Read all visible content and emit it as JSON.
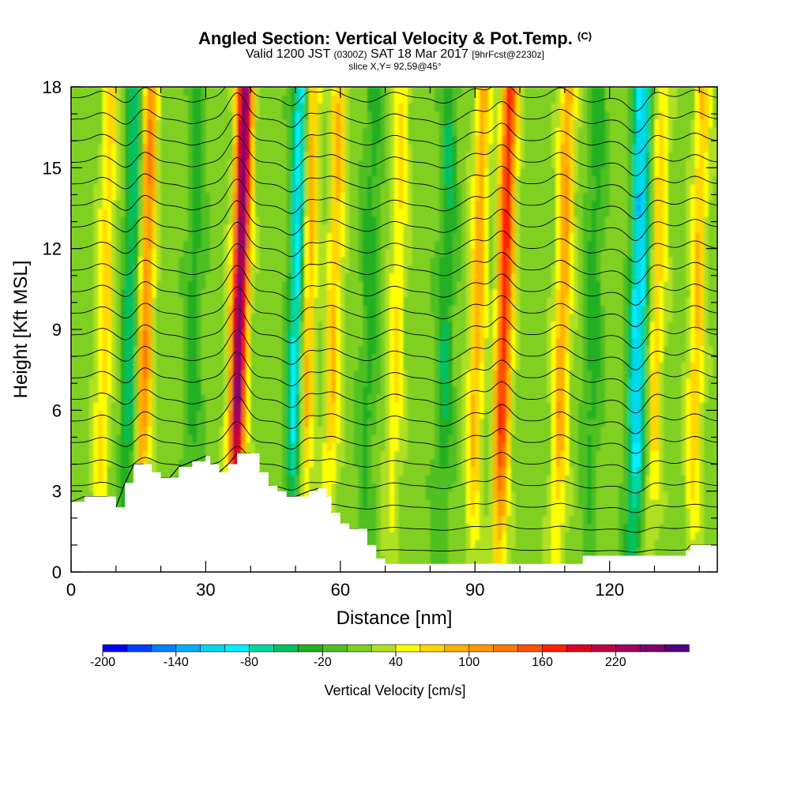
{
  "title_main": "Angled Section: Vertical Velocity & Pot.Temp.",
  "title_unit": "(C)",
  "subtitle_a": "Valid 1200 JST",
  "subtitle_b": "(0300Z)",
  "subtitle_c": "SAT 18 Mar 2017",
  "subtitle_d": "[9hrFcst@2230z]",
  "slice_note": "slice X,Y= 92,59@45°",
  "chart_data": {
    "type": "heatmap",
    "xlabel": "Distance [nm]",
    "ylabel": "Height [Kft MSL]",
    "xlim": [
      0,
      144
    ],
    "ylim": [
      0,
      18
    ],
    "x_ticks": [
      0,
      30,
      60,
      90,
      120
    ],
    "y_ticks": [
      0,
      3,
      6,
      9,
      12,
      15,
      18
    ],
    "colorbar": {
      "title": "Vertical Velocity [cm/s]",
      "ticks": [
        -200,
        -140,
        -80,
        -20,
        40,
        100,
        160,
        220
      ],
      "levels": [
        -200,
        -180,
        -160,
        -140,
        -120,
        -100,
        -80,
        -60,
        -40,
        -20,
        0,
        20,
        40,
        60,
        80,
        100,
        120,
        140,
        160,
        180,
        200,
        220,
        240,
        260
      ],
      "colors": [
        "#0000ff",
        "#0040ff",
        "#0080ff",
        "#00b0ff",
        "#00d8f0",
        "#00f0ff",
        "#00d8a0",
        "#00c060",
        "#20b020",
        "#50c020",
        "#80d020",
        "#b0e020",
        "#ffff00",
        "#ffd800",
        "#ffb000",
        "#ff9800",
        "#ff7800",
        "#ff5000",
        "#ff2000",
        "#e00020",
        "#c00040",
        "#a00060",
        "#800070",
        "#500080"
      ]
    },
    "updraft_columns": [
      {
        "x": 7,
        "w": 60
      },
      {
        "x": 16,
        "w": 110
      },
      {
        "x": 37,
        "w": 240
      },
      {
        "x": 52,
        "w": 100
      },
      {
        "x": 58,
        "w": 70
      },
      {
        "x": 72,
        "w": 50
      },
      {
        "x": 90,
        "w": 80
      },
      {
        "x": 96,
        "w": 160
      },
      {
        "x": 109,
        "w": 90
      },
      {
        "x": 130,
        "w": 60
      },
      {
        "x": 139,
        "w": 70
      }
    ],
    "downdraft_columns": [
      {
        "x": 13,
        "w": -70
      },
      {
        "x": 27,
        "w": -40
      },
      {
        "x": 50,
        "w": -120
      },
      {
        "x": 66,
        "w": -40
      },
      {
        "x": 83,
        "w": -50
      },
      {
        "x": 116,
        "w": -40
      },
      {
        "x": 126,
        "w": -130
      }
    ],
    "terrain_kft": [
      [
        0,
        2.6
      ],
      [
        3,
        2.8
      ],
      [
        8,
        2.8
      ],
      [
        10,
        2.4
      ],
      [
        12,
        3.3
      ],
      [
        14,
        4.0
      ],
      [
        16,
        4.0
      ],
      [
        18,
        3.7
      ],
      [
        20,
        3.5
      ],
      [
        22,
        3.5
      ],
      [
        24,
        3.9
      ],
      [
        27,
        4.1
      ],
      [
        30,
        4.3
      ],
      [
        31,
        4.0
      ],
      [
        33,
        3.7
      ],
      [
        35,
        4.0
      ],
      [
        37,
        4.4
      ],
      [
        40,
        4.4
      ],
      [
        42,
        3.7
      ],
      [
        44,
        3.2
      ],
      [
        46,
        3.0
      ],
      [
        48,
        2.8
      ],
      [
        50,
        2.8
      ],
      [
        53,
        3.0
      ],
      [
        55,
        3.1
      ],
      [
        57,
        2.8
      ],
      [
        58,
        2.2
      ],
      [
        60,
        1.8
      ],
      [
        62,
        1.6
      ],
      [
        64,
        1.6
      ],
      [
        66,
        1.0
      ],
      [
        68,
        0.5
      ],
      [
        70,
        0.3
      ],
      [
        100,
        0.3
      ],
      [
        112,
        0.3
      ],
      [
        114,
        0.6
      ],
      [
        116,
        0.6
      ],
      [
        128,
        0.6
      ],
      [
        137,
        0.8
      ],
      [
        138,
        1.0
      ],
      [
        144,
        1.0
      ]
    ],
    "theta_contour_base_kft": [
      0.8,
      1.6,
      2.4,
      3.2,
      4.0,
      4.8,
      5.6,
      6.4,
      7.2,
      8.0,
      8.8,
      9.6,
      10.4,
      11.2,
      12.0,
      12.8,
      13.6,
      14.4,
      15.2,
      16.0,
      16.8,
      17.6
    ]
  }
}
